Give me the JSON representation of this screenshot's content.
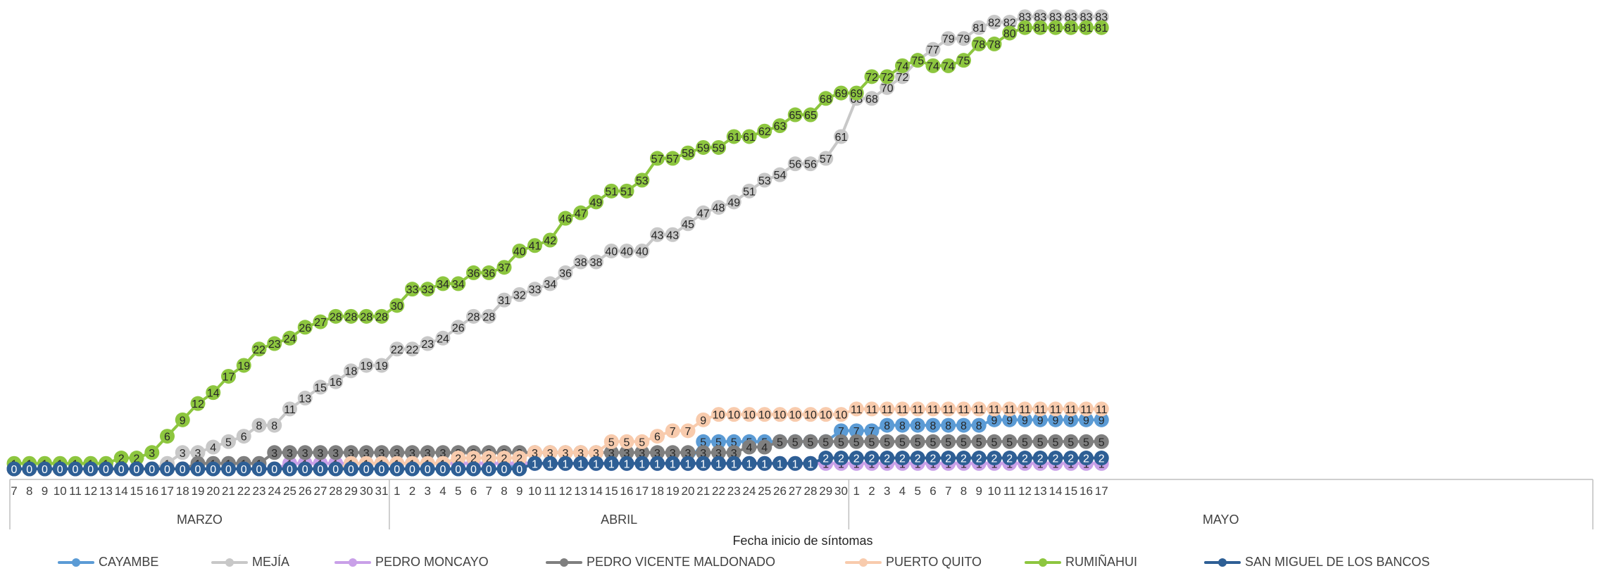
{
  "chart_data": {
    "type": "line",
    "title": "",
    "xlabel": "Fecha inicio de síntomas",
    "ylabel": "",
    "x": [
      "7",
      "8",
      "9",
      "10",
      "11",
      "12",
      "13",
      "14",
      "15",
      "16",
      "17",
      "18",
      "19",
      "20",
      "21",
      "22",
      "23",
      "24",
      "25",
      "26",
      "27",
      "28",
      "29",
      "30",
      "31",
      "1",
      "2",
      "3",
      "4",
      "5",
      "6",
      "7",
      "8",
      "9",
      "10",
      "11",
      "12",
      "13",
      "14",
      "15",
      "16",
      "17",
      "18",
      "19",
      "20",
      "21",
      "22",
      "23",
      "24",
      "25",
      "26",
      "27",
      "28",
      "29",
      "30",
      "1",
      "2",
      "3",
      "4",
      "5",
      "6",
      "7",
      "8",
      "9",
      "10",
      "11",
      "12",
      "13",
      "14",
      "15",
      "16",
      "17"
    ],
    "x_groups": [
      {
        "label": "MARZO",
        "count": 25
      },
      {
        "label": "ABRIL",
        "count": 30
      },
      {
        "label": "MAYO",
        "count": 17
      }
    ],
    "ylim": [
      0,
      84
    ],
    "grid": false,
    "legend_position": "bottom",
    "series": [
      {
        "name": "CAYAMBE",
        "color": "#5b9bd5",
        "values": [
          0,
          0,
          0,
          0,
          0,
          0,
          0,
          0,
          0,
          0,
          0,
          0,
          0,
          0,
          0,
          0,
          0,
          0,
          0,
          0,
          0,
          0,
          0,
          0,
          0,
          0,
          0,
          0,
          0,
          0,
          0,
          0,
          0,
          1,
          1,
          1,
          1,
          1,
          1,
          1,
          1,
          1,
          1,
          1,
          1,
          5,
          5,
          5,
          5,
          5,
          5,
          5,
          5,
          5,
          7,
          7,
          7,
          8,
          8,
          8,
          8,
          8,
          8,
          8,
          9,
          9,
          9,
          9,
          9,
          9,
          9,
          9
        ]
      },
      {
        "name": "MEJÍA",
        "color": "#c8c8c8",
        "values": [
          0,
          0,
          0,
          0,
          0,
          0,
          0,
          0,
          0,
          0,
          1,
          3,
          3,
          4,
          5,
          6,
          8,
          8,
          11,
          13,
          15,
          16,
          18,
          19,
          19,
          22,
          22,
          23,
          24,
          26,
          28,
          28,
          31,
          32,
          33,
          34,
          36,
          38,
          38,
          40,
          40,
          40,
          43,
          43,
          45,
          47,
          48,
          49,
          51,
          53,
          54,
          56,
          56,
          57,
          61,
          68,
          68,
          70,
          72,
          75,
          77,
          79,
          79,
          81,
          82,
          82,
          83,
          83,
          83,
          83,
          83,
          83
        ]
      },
      {
        "name": "PEDRO MONCAYO",
        "color": "#c9a0e8",
        "values": [
          0,
          0,
          0,
          0,
          0,
          0,
          0,
          0,
          0,
          0,
          0,
          0,
          0,
          0,
          0,
          0,
          0,
          0,
          1,
          1,
          1,
          1,
          1,
          1,
          1,
          1,
          1,
          1,
          1,
          1,
          1,
          1,
          1,
          1,
          1,
          1,
          1,
          1,
          1,
          1,
          1,
          1,
          1,
          1,
          1,
          1,
          1,
          1,
          1,
          1,
          1,
          1,
          1,
          1,
          1,
          1,
          1,
          1,
          1,
          1,
          1,
          1,
          1,
          1,
          1,
          1,
          1,
          1,
          1,
          1,
          1,
          1
        ]
      },
      {
        "name": "PEDRO VICENTE MALDONADO",
        "color": "#7f7f7f",
        "values": [
          0,
          0,
          0,
          0,
          0,
          0,
          0,
          0,
          0,
          0,
          0,
          0,
          1,
          1,
          1,
          1,
          1,
          3,
          3,
          3,
          3,
          3,
          3,
          3,
          3,
          3,
          3,
          3,
          3,
          3,
          3,
          3,
          3,
          3,
          3,
          3,
          3,
          3,
          3,
          3,
          3,
          3,
          3,
          3,
          3,
          3,
          3,
          3,
          4,
          4,
          5,
          5,
          5,
          5,
          5,
          5,
          5,
          5,
          5,
          5,
          5,
          5,
          5,
          5,
          5,
          5,
          5,
          5,
          5,
          5,
          5,
          5
        ]
      },
      {
        "name": "PUERTO QUITO",
        "color": "#f8cbad",
        "values": [
          0,
          0,
          0,
          0,
          0,
          0,
          0,
          0,
          0,
          0,
          0,
          0,
          0,
          0,
          0,
          0,
          0,
          0,
          0,
          0,
          0,
          0,
          1,
          1,
          1,
          1,
          1,
          1,
          1,
          2,
          2,
          2,
          2,
          2,
          3,
          3,
          3,
          3,
          3,
          5,
          5,
          5,
          6,
          7,
          7,
          9,
          10,
          10,
          10,
          10,
          10,
          10,
          10,
          10,
          10,
          11,
          11,
          11,
          11,
          11,
          11,
          11,
          11,
          11,
          11,
          11,
          11,
          11,
          11,
          11,
          11,
          11
        ]
      },
      {
        "name": "RUMIÑAHUI",
        "color": "#8dc63f",
        "values": [
          1,
          1,
          1,
          1,
          1,
          1,
          1,
          2,
          2,
          3,
          6,
          9,
          12,
          14,
          17,
          19,
          22,
          23,
          24,
          26,
          27,
          28,
          28,
          28,
          28,
          30,
          33,
          33,
          34,
          34,
          36,
          36,
          37,
          40,
          41,
          42,
          46,
          47,
          49,
          51,
          51,
          53,
          57,
          57,
          58,
          59,
          59,
          61,
          61,
          62,
          63,
          65,
          65,
          68,
          69,
          69,
          72,
          72,
          74,
          75,
          74,
          74,
          75,
          78,
          78,
          80,
          81,
          81,
          81,
          81,
          81,
          81
        ]
      },
      {
        "name": "SAN MIGUEL DE LOS BANCOS",
        "color": "#2e5f95",
        "values": [
          0,
          0,
          0,
          0,
          0,
          0,
          0,
          0,
          0,
          0,
          0,
          0,
          0,
          0,
          0,
          0,
          0,
          0,
          0,
          0,
          0,
          0,
          0,
          0,
          0,
          0,
          0,
          0,
          0,
          0,
          0,
          0,
          0,
          0,
          1,
          1,
          1,
          1,
          1,
          1,
          1,
          1,
          1,
          1,
          1,
          1,
          1,
          1,
          1,
          1,
          1,
          1,
          1,
          2,
          2,
          2,
          2,
          2,
          2,
          2,
          2,
          2,
          2,
          2,
          2,
          2,
          2,
          2,
          2,
          2,
          2,
          2
        ]
      }
    ]
  }
}
